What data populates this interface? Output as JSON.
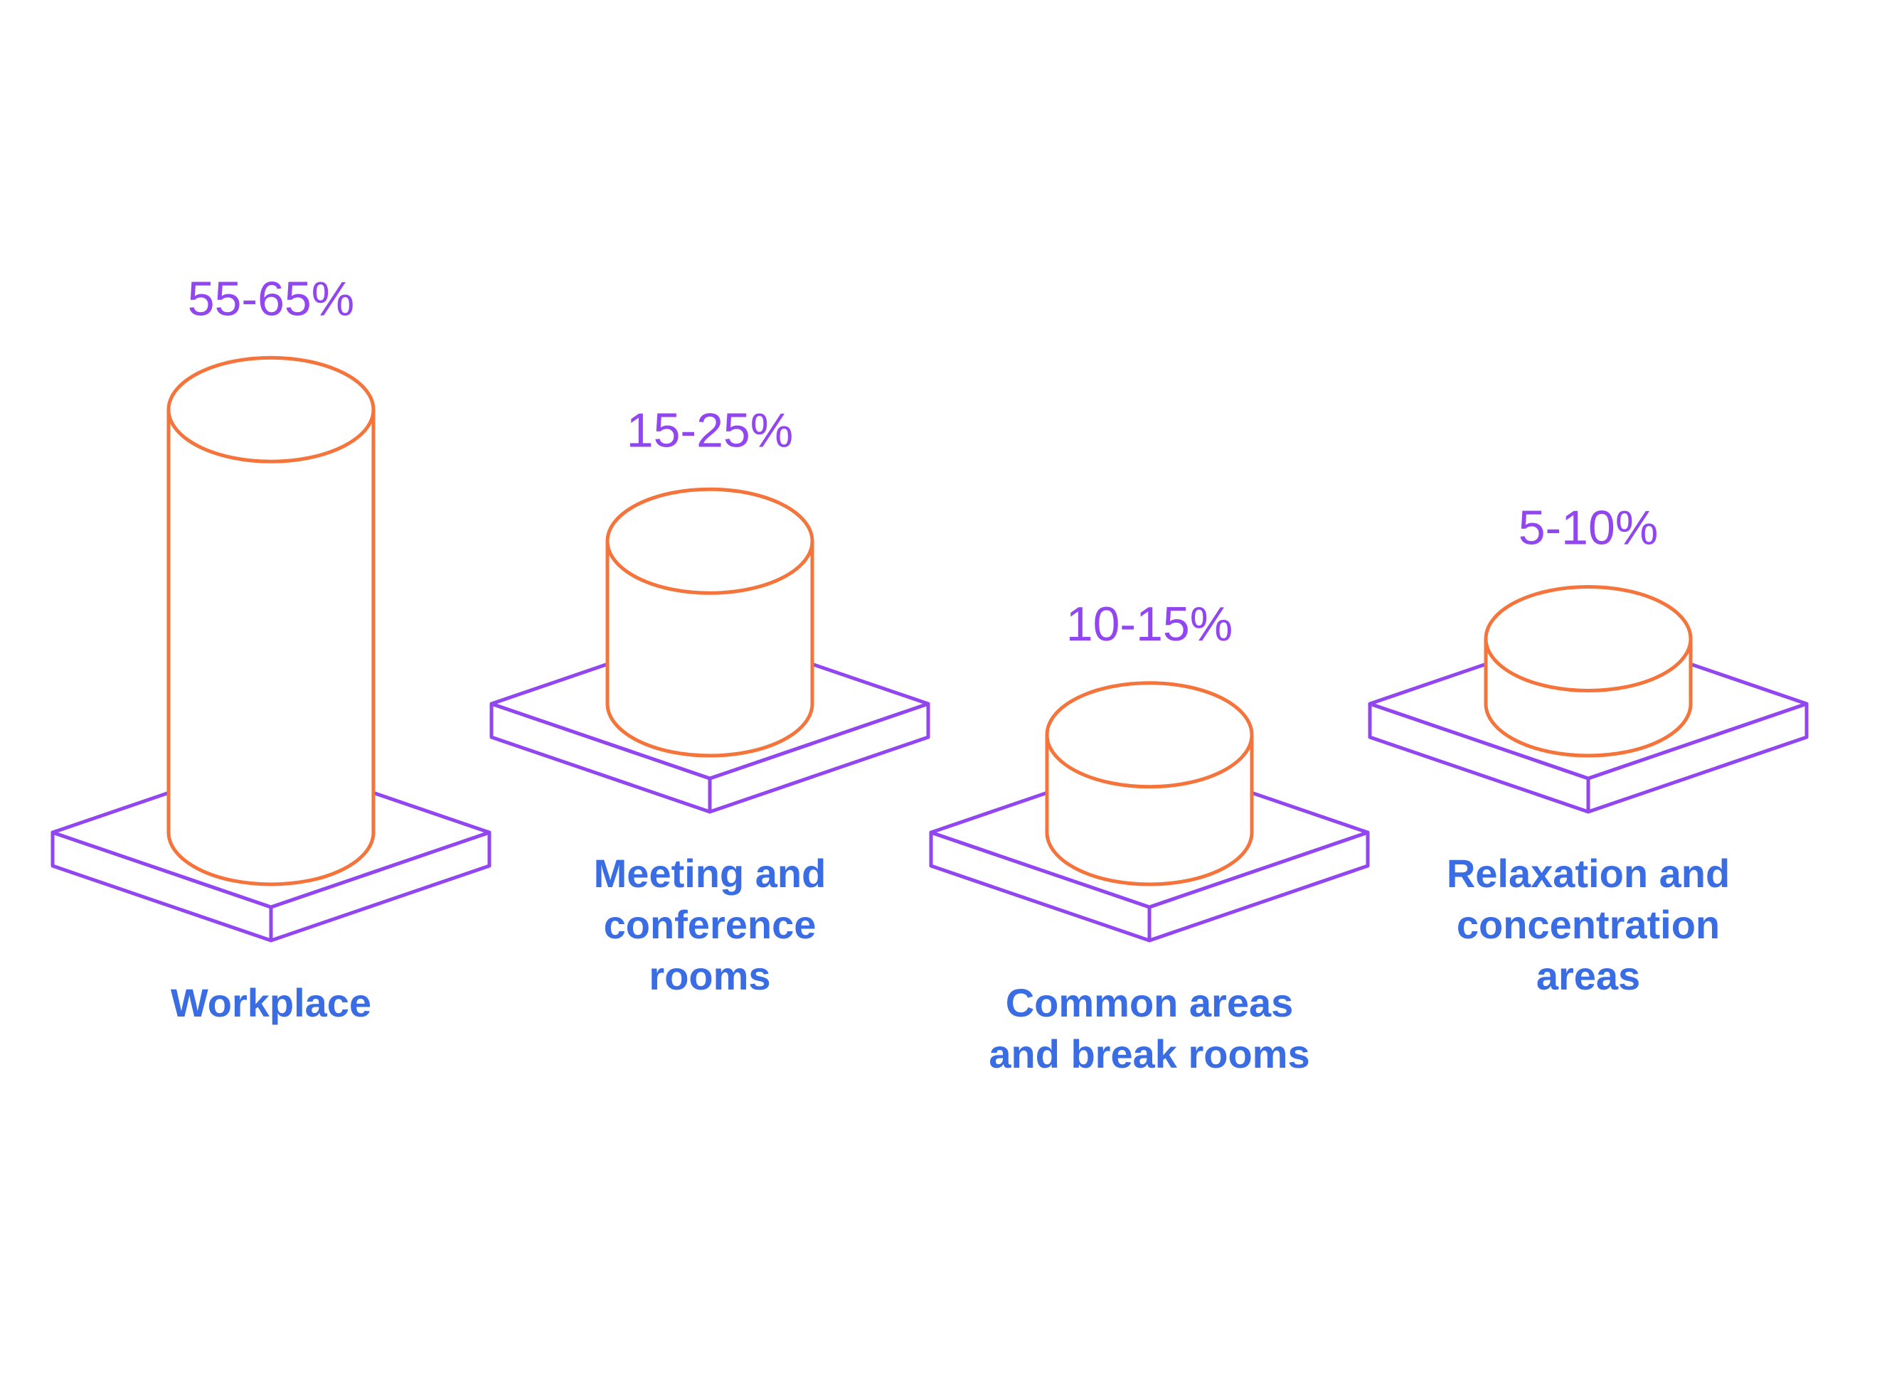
{
  "colors": {
    "base_stroke": "#9146f0",
    "cylinder_stroke": "#f4743b",
    "range_label": "#9146f0",
    "category_label": "#3a6de3",
    "background": "#ffffff"
  },
  "chart_data": {
    "type": "bar",
    "style": "isometric cylinders on square bases",
    "title": "",
    "xlabel": "",
    "ylabel": "",
    "legend": "none",
    "grid": false,
    "categories": [
      "Workplace",
      "Meeting and conference rooms",
      "Common areas and break rooms",
      "Relaxation and concentration areas"
    ],
    "category_lines": [
      [
        "Workplace"
      ],
      [
        "Meeting and",
        "conference",
        "rooms"
      ],
      [
        "Common areas",
        "and break rooms"
      ],
      [
        "Relaxation and",
        "concentration",
        "areas"
      ]
    ],
    "range_labels": [
      "55-65%",
      "15-25%",
      "10-15%",
      "5-10%"
    ],
    "ranges": [
      [
        55,
        65
      ],
      [
        15,
        25
      ],
      [
        10,
        15
      ],
      [
        5,
        10
      ]
    ]
  }
}
